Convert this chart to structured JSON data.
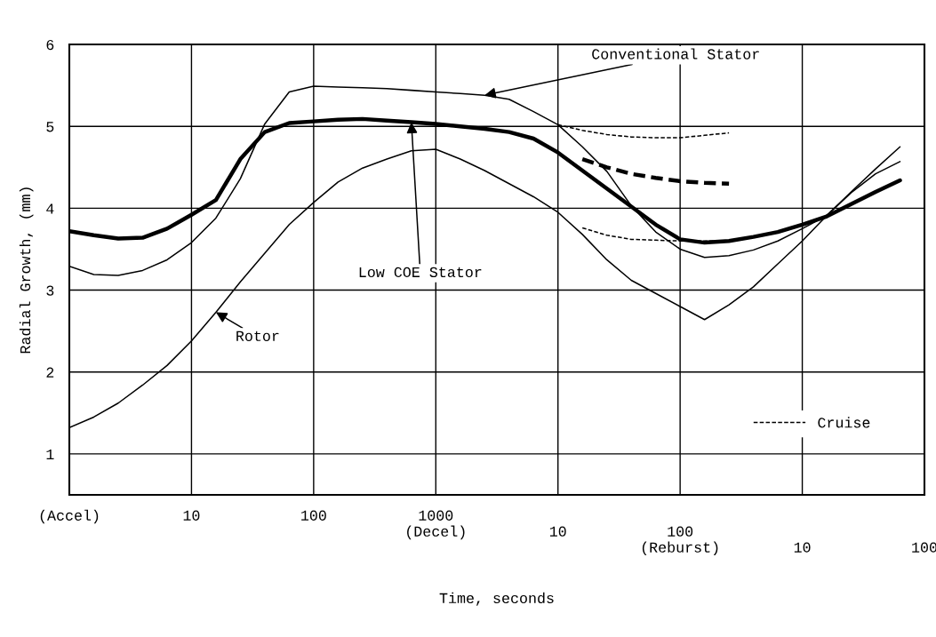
{
  "chart_data": {
    "type": "line",
    "xlabel": "Time, seconds",
    "ylabel": "Radial Growth, (mm)",
    "categories": [
      "(Accel)",
      null,
      null,
      null,
      null,
      "10",
      null,
      null,
      null,
      null,
      "100",
      null,
      null,
      null,
      null,
      "1000\n(Decel)",
      null,
      null,
      null,
      null,
      "\n10",
      null,
      null,
      null,
      null,
      "\n100\n(Reburst)",
      null,
      null,
      null,
      null,
      "\n\n10",
      null,
      null,
      null,
      null,
      "\n\n100"
    ],
    "ylim": [
      0.5,
      6
    ],
    "yticks": [
      1,
      2,
      3,
      4,
      5,
      6
    ],
    "grid": true,
    "legend": "bottom right",
    "marker": "none",
    "series": [
      {
        "name": "Low COE Stator",
        "color": "#000000",
        "line_style": "solid",
        "values": [
          3.72,
          3.67,
          3.63,
          3.64,
          3.75,
          3.92,
          4.1,
          4.6,
          4.93,
          5.04,
          5.06,
          5.08,
          5.09,
          5.07,
          5.05,
          5.03,
          5.0,
          4.97,
          4.93,
          4.85,
          4.68,
          4.46,
          4.24,
          4.02,
          3.8,
          3.62,
          3.58,
          3.6,
          3.65,
          3.71,
          3.8,
          3.9,
          4.05,
          4.2,
          4.34,
          null
        ]
      },
      {
        "name": "Conventional Stator",
        "color": "#000000",
        "line_style": "solid",
        "values": [
          3.29,
          3.19,
          3.18,
          3.24,
          3.37,
          3.58,
          3.88,
          4.36,
          5.03,
          5.42,
          5.49,
          5.48,
          5.47,
          5.46,
          5.44,
          5.42,
          5.4,
          5.38,
          5.33,
          5.18,
          5.02,
          4.75,
          4.45,
          4.03,
          3.71,
          3.5,
          3.4,
          3.42,
          3.49,
          3.6,
          3.75,
          3.91,
          4.19,
          4.42,
          4.57,
          null
        ]
      },
      {
        "name": "Rotor",
        "color": "#000000",
        "line_style": "solid",
        "values": [
          1.32,
          1.45,
          1.62,
          1.84,
          2.08,
          2.38,
          2.73,
          3.1,
          3.45,
          3.8,
          4.07,
          4.32,
          4.49,
          4.6,
          4.7,
          4.72,
          4.6,
          4.46,
          4.3,
          4.14,
          3.95,
          3.68,
          3.37,
          3.12,
          2.96,
          2.8,
          2.64,
          2.82,
          3.04,
          3.32,
          3.6,
          3.91,
          4.2,
          4.48,
          4.75,
          null
        ]
      },
      {
        "name": "Cruise",
        "color": "#000000",
        "line_style": "dashed",
        "values": [
          null,
          null,
          null,
          null,
          null,
          null,
          null,
          null,
          null,
          null,
          null,
          null,
          null,
          null,
          null,
          null,
          null,
          null,
          null,
          null,
          5.02,
          4.95,
          4.9,
          4.87,
          4.86,
          4.86,
          4.89,
          4.92,
          null,
          null,
          null,
          null,
          null,
          null,
          null,
          null
        ]
      },
      {
        "color": "#000000",
        "line_style": "dashed",
        "values": [
          null,
          null,
          null,
          null,
          null,
          null,
          null,
          null,
          null,
          null,
          null,
          null,
          null,
          null,
          null,
          null,
          null,
          null,
          null,
          null,
          null,
          4.6,
          4.5,
          4.42,
          4.37,
          4.33,
          4.31,
          4.3,
          null,
          null,
          null,
          null,
          null,
          null,
          null,
          null
        ]
      },
      {
        "color": "#000000",
        "line_style": "dashed",
        "values": [
          null,
          null,
          null,
          null,
          null,
          null,
          null,
          null,
          null,
          null,
          null,
          null,
          null,
          null,
          null,
          null,
          null,
          null,
          null,
          null,
          null,
          3.76,
          3.67,
          3.62,
          3.61,
          3.6,
          3.6,
          3.6,
          null,
          null,
          null,
          null,
          null,
          null,
          null,
          null
        ]
      }
    ]
  }
}
